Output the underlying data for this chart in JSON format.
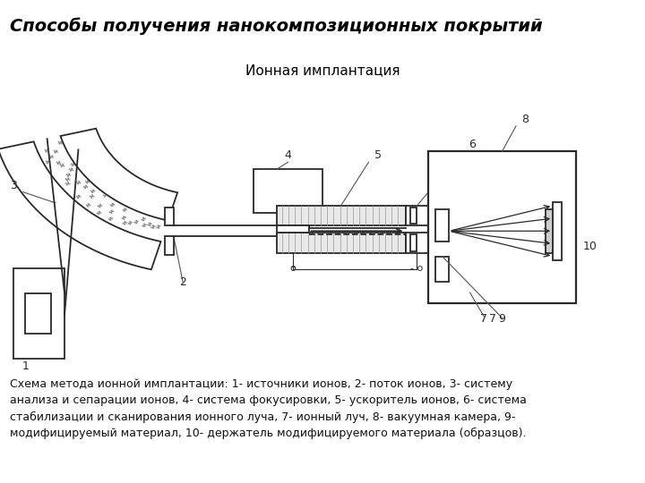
{
  "title_banner": "Способы получения нанокомпозиционных покрытий",
  "subtitle": "Ионная имплантация",
  "banner_color": "#5bc8f5",
  "banner_text_color": "#000000",
  "bg_color": "#ffffff",
  "diagram_bg": "#ffffff",
  "caption": "Схема метода ионной имплантации: 1- источники ионов, 2- поток ионов, 3- систему\nанализа и сепарации ионов, 4- система фокусировки, 5- ускоритель ионов, 6- система\nстабилизации и сканирования ионного луча, 7- ионный луч, 8- вакуумная камера, 9-\nмодифицируемый материал, 10- держатель модифицируемого материала (образцов).",
  "line_color": "#2a2a2a",
  "fill_color": "#ffffff"
}
